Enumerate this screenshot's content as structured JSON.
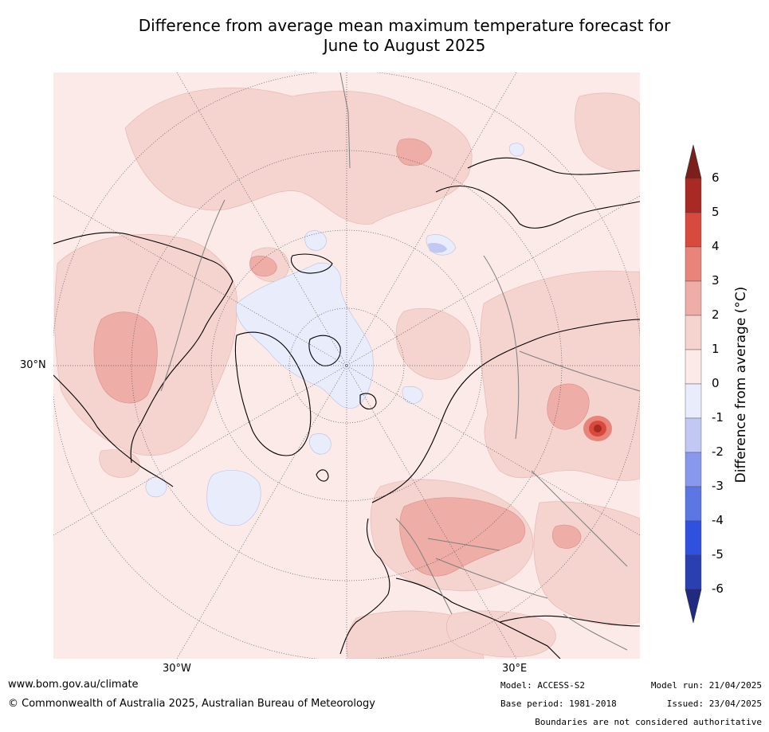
{
  "title_line1": "Difference from average mean maximum temperature forecast for",
  "title_line2": "June to August 2025",
  "ticks": {
    "lat_30n": "30°N",
    "lon_30w": "30°W",
    "lon_30e": "30°E"
  },
  "colorbar": {
    "title": "Difference from average (°C)",
    "labels": [
      "6",
      "5",
      "4",
      "3",
      "2",
      "1",
      "0",
      "-1",
      "-2",
      "-3",
      "-4",
      "-5",
      "-6"
    ],
    "colors_warm": [
      "#a92a25",
      "#d94a3e",
      "#e8847a",
      "#eeada6",
      "#f5d3cf",
      "#fbeae8"
    ],
    "colors_cool": [
      "#e8ecfb",
      "#c0c8f3",
      "#8898ec",
      "#5c76e4",
      "#3050df",
      "#2a3fb0"
    ],
    "over_color": "#7a1f1a",
    "under_color": "#1f2a80"
  },
  "footer": {
    "website": "www.bom.gov.au/climate",
    "copyright": "© Commonwealth of Australia 2025, Australian Bureau of Meteorology",
    "model": "Model: ACCESS-S2",
    "base_period": "Base period: 1981-2018",
    "model_run": "Model run: 21/04/2025",
    "issued": "Issued: 23/04/2025",
    "disclaimer": "Boundaries are not considered authoritative"
  }
}
